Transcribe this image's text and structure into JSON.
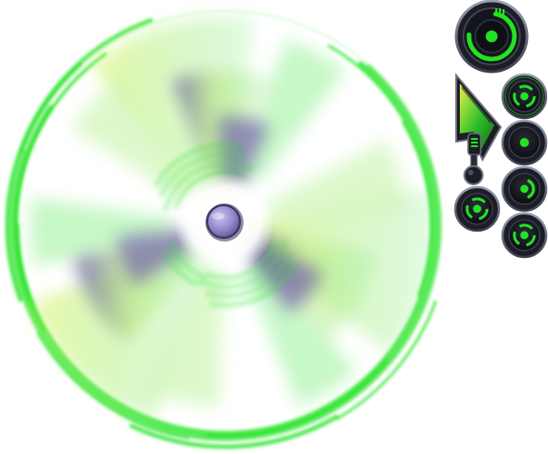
{
  "scene": {
    "description_free": true
  },
  "colors": {
    "neon_green": "#22e322",
    "lime": "#d8f46a",
    "violet": "#6a5aa8",
    "hub_fill": "#8f86c9",
    "hub_ring": "#3a3563",
    "control_dark": "#1c1d26",
    "control_bezel": "#5d6170",
    "button_face": "#101117",
    "lever_yellow": "#d7e23a",
    "lever_green": "#2fbf2a"
  },
  "controls": {
    "speed_dial": {
      "icon": "dial-icon",
      "level": 0.8
    },
    "pitch_lever": {
      "icon": "lever-icon",
      "level": 0.75
    },
    "buttons": [
      {
        "name": "spin-mode-button",
        "icon": "tri-ring-icon",
        "active": true
      },
      {
        "name": "stop-button",
        "icon": "dot-icon",
        "active": false
      },
      {
        "name": "swing-button",
        "icon": "arc-icon",
        "active": false
      },
      {
        "name": "turbo-button",
        "icon": "tri-ring-icon",
        "active": false
      },
      {
        "name": "reverse-button",
        "icon": "tri-ring-icon",
        "active": false
      }
    ]
  }
}
